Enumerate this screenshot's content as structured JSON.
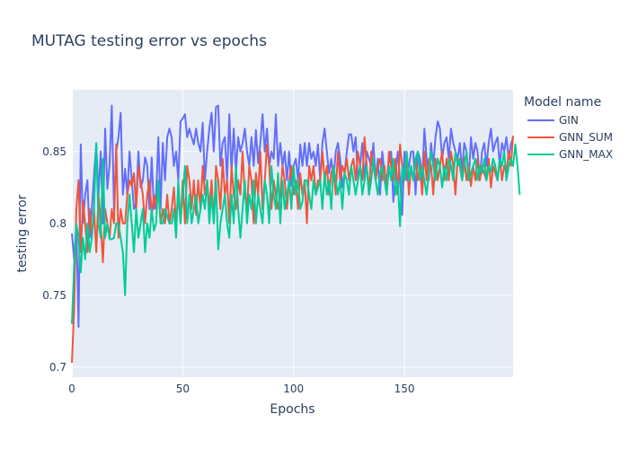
{
  "chart_data": {
    "type": "line",
    "title": "MUTAG testing error vs epochs",
    "xlabel": "Epochs",
    "ylabel": "testing error",
    "xlim": [
      0,
      199
    ],
    "ylim": [
      0.693,
      0.893
    ],
    "x_ticks": [
      0,
      50,
      100,
      150
    ],
    "y_ticks": [
      0.7,
      0.75,
      0.8,
      0.85
    ],
    "y_tick_labels": [
      "0.7",
      "0.75",
      "0.8",
      "0.85"
    ],
    "grid": true,
    "plot_background": "#e5ecf6",
    "legend": {
      "title": "Model name",
      "position": "right"
    },
    "series": [
      {
        "name": "GIN",
        "color": "#636efa",
        "y": [
          0.793,
          0.775,
          0.8,
          0.728,
          0.855,
          0.8,
          0.82,
          0.83,
          0.79,
          0.81,
          0.834,
          0.855,
          0.82,
          0.85,
          0.8,
          0.866,
          0.824,
          0.841,
          0.882,
          0.81,
          0.85,
          0.86,
          0.877,
          0.82,
          0.838,
          0.82,
          0.85,
          0.83,
          0.81,
          0.815,
          0.85,
          0.825,
          0.83,
          0.846,
          0.84,
          0.81,
          0.846,
          0.81,
          0.82,
          0.86,
          0.81,
          0.856,
          0.83,
          0.86,
          0.866,
          0.86,
          0.84,
          0.85,
          0.83,
          0.871,
          0.873,
          0.876,
          0.86,
          0.866,
          0.86,
          0.855,
          0.866,
          0.856,
          0.85,
          0.87,
          0.83,
          0.85,
          0.866,
          0.877,
          0.85,
          0.881,
          0.882,
          0.84,
          0.856,
          0.86,
          0.83,
          0.876,
          0.835,
          0.866,
          0.836,
          0.86,
          0.85,
          0.856,
          0.866,
          0.85,
          0.84,
          0.86,
          0.84,
          0.865,
          0.842,
          0.856,
          0.876,
          0.85,
          0.866,
          0.84,
          0.85,
          0.845,
          0.876,
          0.84,
          0.856,
          0.84,
          0.85,
          0.83,
          0.85,
          0.826,
          0.84,
          0.845,
          0.83,
          0.855,
          0.84,
          0.856,
          0.84,
          0.856,
          0.845,
          0.85,
          0.84,
          0.855,
          0.83,
          0.856,
          0.866,
          0.85,
          0.835,
          0.845,
          0.83,
          0.85,
          0.856,
          0.845,
          0.825,
          0.835,
          0.85,
          0.862,
          0.862,
          0.85,
          0.86,
          0.83,
          0.84,
          0.856,
          0.83,
          0.85,
          0.845,
          0.84,
          0.856,
          0.83,
          0.845,
          0.82,
          0.85,
          0.835,
          0.83,
          0.845,
          0.85,
          0.815,
          0.835,
          0.85,
          0.83,
          0.806,
          0.85,
          0.83,
          0.84,
          0.85,
          0.85,
          0.82,
          0.85,
          0.845,
          0.83,
          0.866,
          0.845,
          0.83,
          0.856,
          0.84,
          0.86,
          0.871,
          0.866,
          0.845,
          0.856,
          0.86,
          0.845,
          0.866,
          0.856,
          0.85,
          0.845,
          0.856,
          0.836,
          0.856,
          0.85,
          0.83,
          0.86,
          0.845,
          0.856,
          0.85,
          0.83,
          0.85,
          0.856,
          0.84,
          0.856,
          0.866,
          0.85,
          0.856,
          0.86,
          0.84,
          0.856,
          0.85,
          0.86,
          0.845,
          0.855,
          0.86
        ]
      },
      {
        "name": "GNN_SUM",
        "color": "#ef553b",
        "y": [
          0.703,
          0.74,
          0.81,
          0.83,
          0.78,
          0.816,
          0.8,
          0.78,
          0.81,
          0.79,
          0.81,
          0.78,
          0.82,
          0.8,
          0.773,
          0.81,
          0.8,
          0.79,
          0.81,
          0.8,
          0.855,
          0.79,
          0.81,
          0.8,
          0.8,
          0.82,
          0.83,
          0.826,
          0.835,
          0.81,
          0.84,
          0.83,
          0.82,
          0.8,
          0.82,
          0.83,
          0.806,
          0.82,
          0.81,
          0.826,
          0.8,
          0.81,
          0.8,
          0.82,
          0.8,
          0.81,
          0.825,
          0.8,
          0.82,
          0.8,
          0.83,
          0.8,
          0.84,
          0.83,
          0.81,
          0.83,
          0.806,
          0.83,
          0.81,
          0.84,
          0.82,
          0.83,
          0.81,
          0.83,
          0.8,
          0.84,
          0.83,
          0.81,
          0.845,
          0.82,
          0.83,
          0.8,
          0.84,
          0.82,
          0.81,
          0.83,
          0.82,
          0.85,
          0.82,
          0.81,
          0.84,
          0.83,
          0.8,
          0.835,
          0.82,
          0.85,
          0.81,
          0.83,
          0.855,
          0.84,
          0.81,
          0.83,
          0.82,
          0.81,
          0.82,
          0.84,
          0.83,
          0.81,
          0.83,
          0.84,
          0.82,
          0.83,
          0.81,
          0.835,
          0.82,
          0.83,
          0.8,
          0.84,
          0.83,
          0.84,
          0.82,
          0.83,
          0.83,
          0.85,
          0.83,
          0.84,
          0.82,
          0.835,
          0.84,
          0.82,
          0.85,
          0.83,
          0.84,
          0.835,
          0.845,
          0.83,
          0.84,
          0.845,
          0.83,
          0.85,
          0.84,
          0.83,
          0.86,
          0.84,
          0.82,
          0.85,
          0.84,
          0.83,
          0.84,
          0.845,
          0.83,
          0.84,
          0.82,
          0.85,
          0.84,
          0.83,
          0.845,
          0.82,
          0.855,
          0.84,
          0.83,
          0.85,
          0.82,
          0.84,
          0.83,
          0.845,
          0.83,
          0.84,
          0.82,
          0.85,
          0.83,
          0.845,
          0.84,
          0.82,
          0.845,
          0.83,
          0.84,
          0.85,
          0.83,
          0.845,
          0.83,
          0.85,
          0.84,
          0.82,
          0.845,
          0.84,
          0.83,
          0.846,
          0.83,
          0.84,
          0.826,
          0.84,
          0.83,
          0.845,
          0.83,
          0.84,
          0.835,
          0.83,
          0.845,
          0.825,
          0.84,
          0.835,
          0.83,
          0.845,
          0.83,
          0.84,
          0.835,
          0.85,
          0.84,
          0.861
        ]
      },
      {
        "name": "GNN_MAX",
        "color": "#00cc96",
        "y": [
          0.73,
          0.77,
          0.8,
          0.79,
          0.766,
          0.79,
          0.775,
          0.8,
          0.78,
          0.79,
          0.81,
          0.856,
          0.8,
          0.79,
          0.845,
          0.79,
          0.8,
          0.789,
          0.789,
          0.79,
          0.8,
          0.8,
          0.79,
          0.78,
          0.75,
          0.8,
          0.82,
          0.8,
          0.78,
          0.81,
          0.79,
          0.8,
          0.81,
          0.78,
          0.8,
          0.79,
          0.81,
          0.795,
          0.8,
          0.83,
          0.8,
          0.8,
          0.81,
          0.805,
          0.8,
          0.8,
          0.81,
          0.79,
          0.83,
          0.8,
          0.82,
          0.84,
          0.8,
          0.82,
          0.8,
          0.81,
          0.82,
          0.8,
          0.81,
          0.82,
          0.81,
          0.83,
          0.8,
          0.82,
          0.8,
          0.83,
          0.782,
          0.8,
          0.81,
          0.82,
          0.8,
          0.79,
          0.82,
          0.8,
          0.84,
          0.81,
          0.79,
          0.81,
          0.83,
          0.8,
          0.82,
          0.81,
          0.83,
          0.8,
          0.82,
          0.81,
          0.8,
          0.83,
          0.82,
          0.8,
          0.84,
          0.82,
          0.81,
          0.835,
          0.8,
          0.83,
          0.81,
          0.82,
          0.83,
          0.81,
          0.84,
          0.82,
          0.83,
          0.81,
          0.815,
          0.83,
          0.83,
          0.82,
          0.81,
          0.83,
          0.82,
          0.825,
          0.83,
          0.81,
          0.835,
          0.82,
          0.83,
          0.81,
          0.84,
          0.83,
          0.82,
          0.83,
          0.81,
          0.835,
          0.83,
          0.82,
          0.84,
          0.83,
          0.82,
          0.83,
          0.84,
          0.82,
          0.83,
          0.84,
          0.82,
          0.83,
          0.845,
          0.83,
          0.82,
          0.835,
          0.84,
          0.83,
          0.82,
          0.84,
          0.83,
          0.845,
          0.82,
          0.83,
          0.798,
          0.84,
          0.83,
          0.85,
          0.83,
          0.84,
          0.83,
          0.845,
          0.85,
          0.83,
          0.84,
          0.83,
          0.82,
          0.835,
          0.85,
          0.84,
          0.83,
          0.845,
          0.84,
          0.825,
          0.84,
          0.83,
          0.845,
          0.84,
          0.83,
          0.85,
          0.84,
          0.845,
          0.83,
          0.84,
          0.85,
          0.83,
          0.835,
          0.84,
          0.845,
          0.83,
          0.84,
          0.835,
          0.845,
          0.83,
          0.84,
          0.836,
          0.845,
          0.84,
          0.83,
          0.845,
          0.84,
          0.85,
          0.83,
          0.84,
          0.845,
          0.84,
          0.855,
          0.84,
          0.82
        ]
      }
    ]
  }
}
